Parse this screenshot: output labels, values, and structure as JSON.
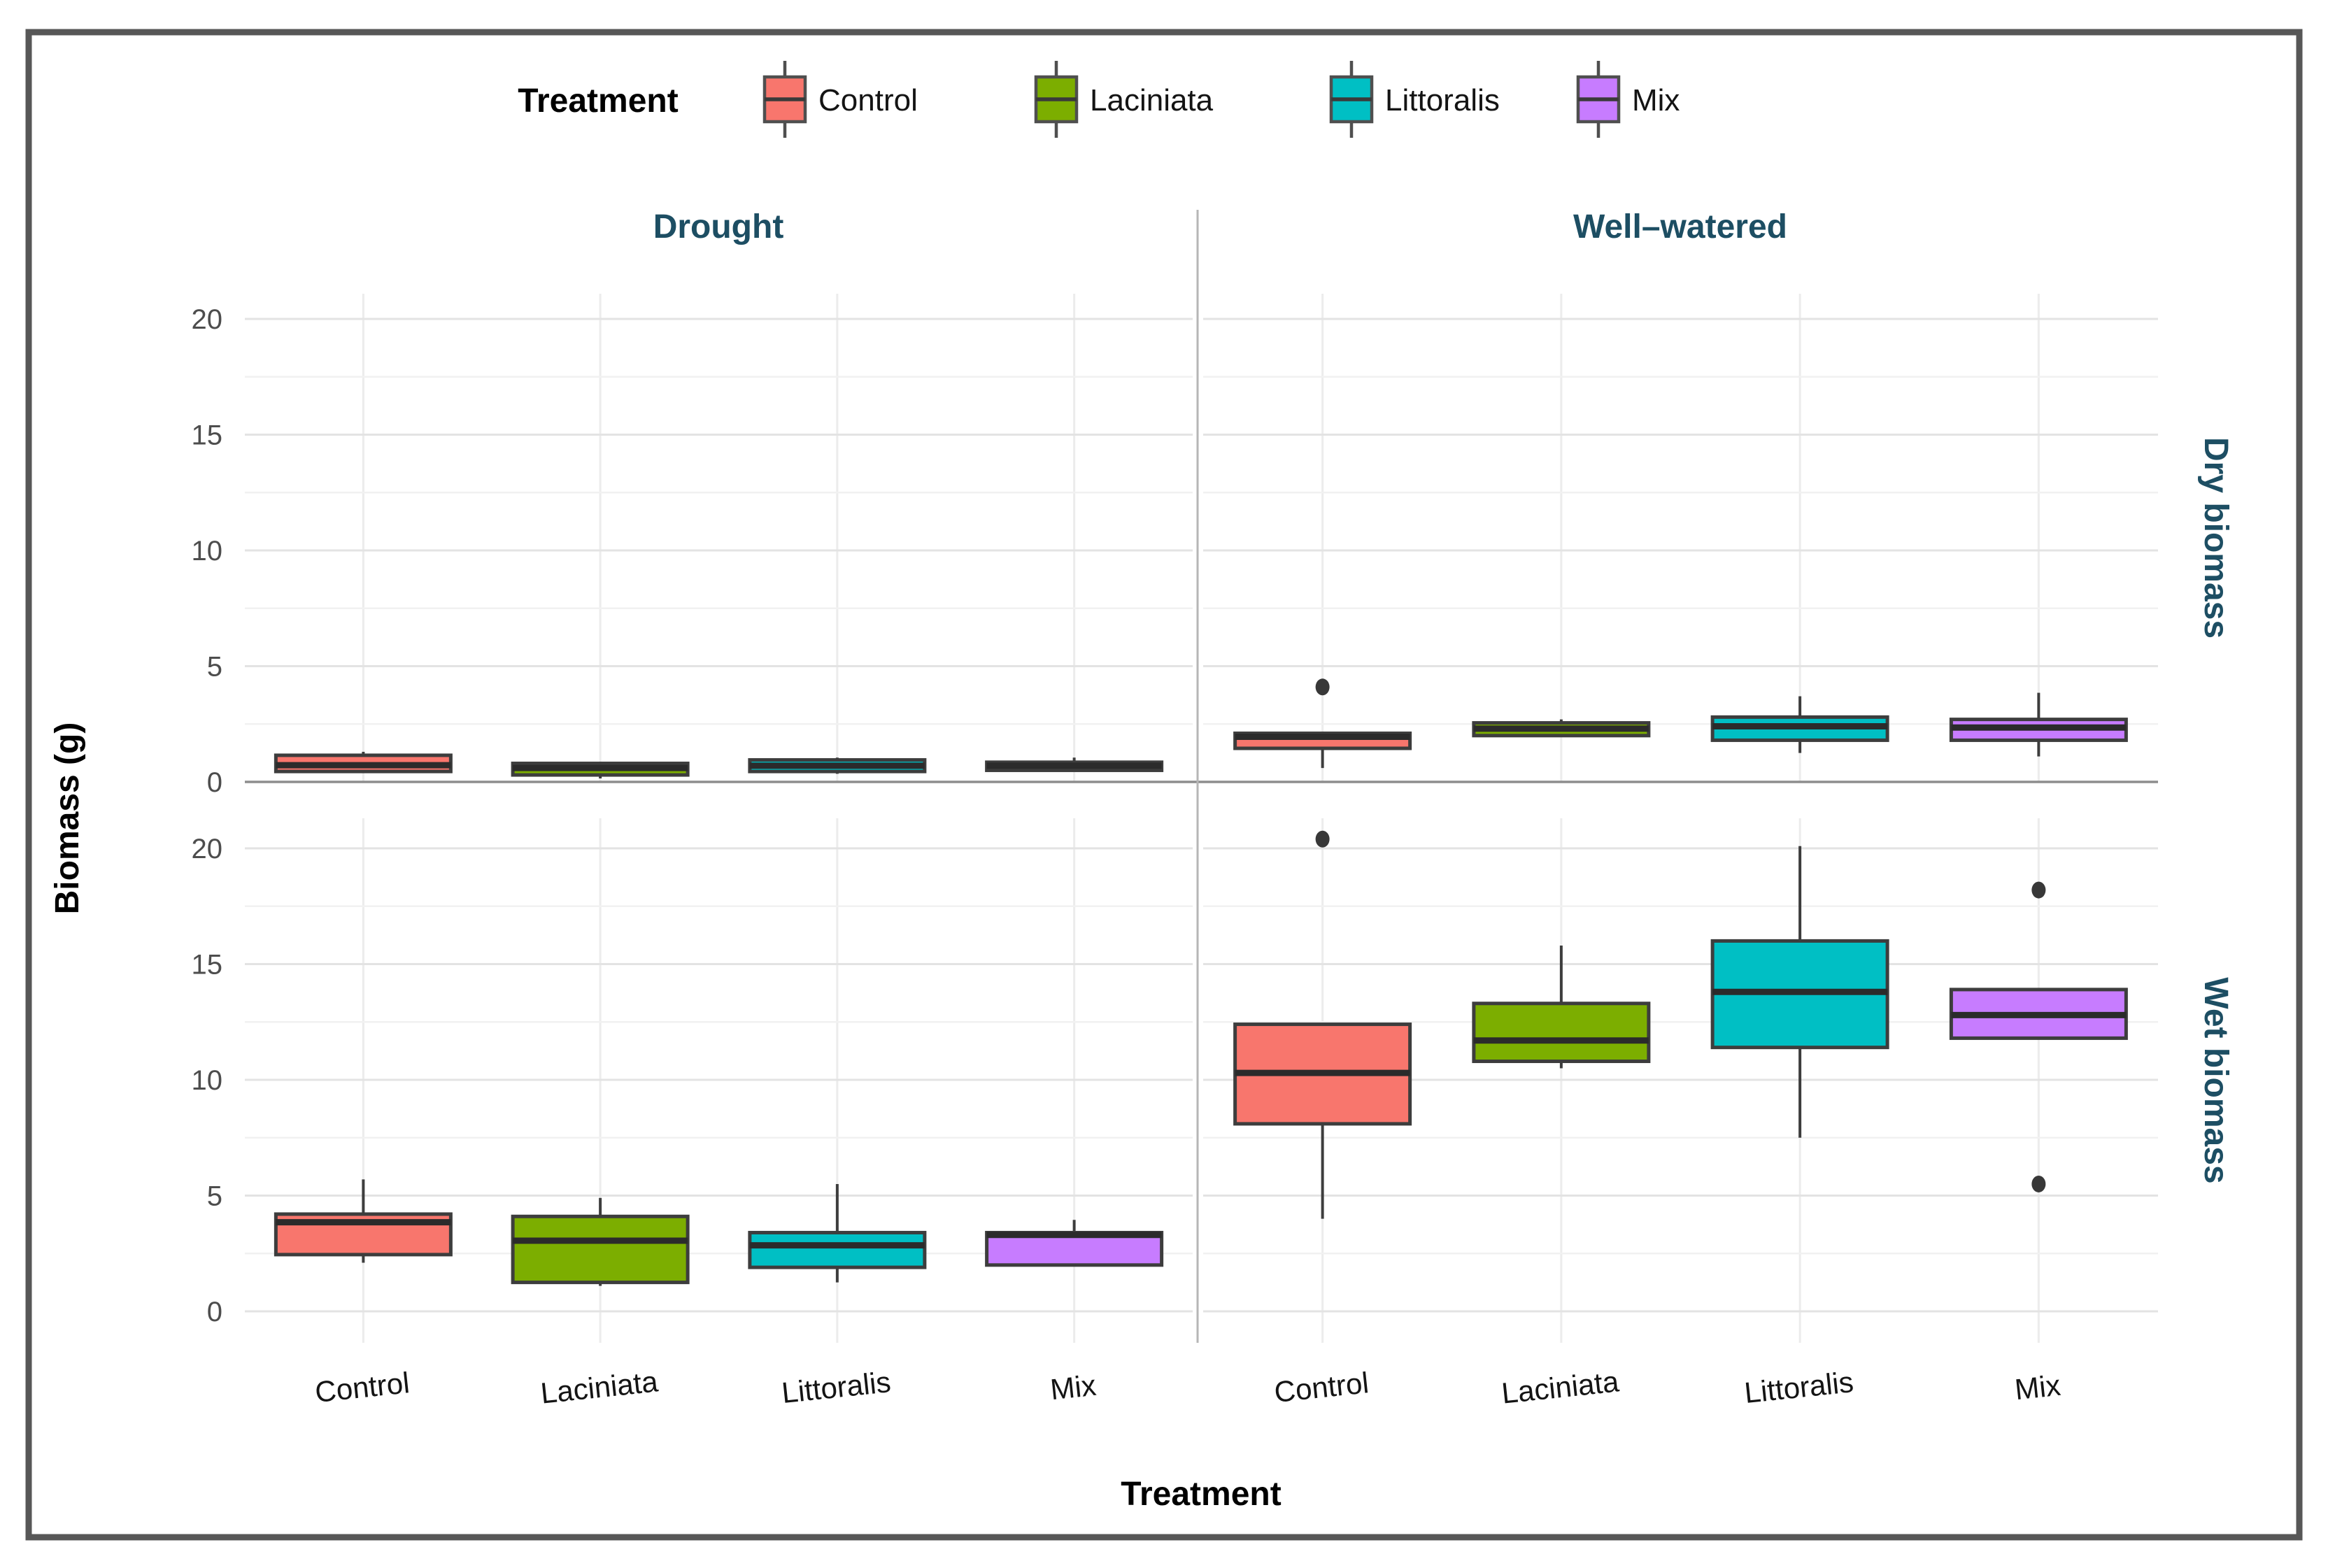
{
  "figure": {
    "legend": {
      "title": "Treatment",
      "position": "top",
      "items": [
        {
          "label": "Control",
          "color": "#F8766D"
        },
        {
          "label": "Laciniata",
          "color": "#7CAE00"
        },
        {
          "label": "Littoralis",
          "color": "#00BFC4"
        },
        {
          "label": "Mix",
          "color": "#C77CFF"
        }
      ]
    },
    "colors": {
      "strip_text": "#1d4e63",
      "tick_text": "#4d4d4d",
      "axis_text": "#141414",
      "grid_major": "#e3e3e3",
      "grid_minor": "#f1f1f1",
      "grid_vertical": "#ececec",
      "separator": "#8d8d8d",
      "divider": "#b6b6b6",
      "box_border": "#3d3d3d",
      "median": "#2b2b2b",
      "outlier": "#383838",
      "frame": "#575757",
      "background": "#ffffff"
    }
  },
  "chart_data": {
    "type": "boxplot",
    "title": "",
    "xlabel": "Treatment",
    "ylabel": "Biomass (g)",
    "y_ticks": [
      0,
      5,
      10,
      15,
      20
    ],
    "ylim": [
      0,
      21
    ],
    "grid": true,
    "legend_position": "top",
    "col_facets": [
      "Drought",
      "Well–watered"
    ],
    "row_facets": [
      "Dry biomass",
      "Wet biomass"
    ],
    "groups": [
      "Control",
      "Laciniata",
      "Littoralis",
      "Mix"
    ],
    "colors": {
      "Control": "#F8766D",
      "Laciniata": "#7CAE00",
      "Littoralis": "#00BFC4",
      "Mix": "#C77CFF"
    },
    "panels": [
      {
        "row": 0,
        "col": 0,
        "row_label": "Dry biomass",
        "col_label": "Drought",
        "boxes": [
          {
            "group": "Control",
            "whislo": 0.4,
            "q1": 0.45,
            "med": 0.72,
            "q3": 1.15,
            "whishi": 1.3,
            "outliers": []
          },
          {
            "group": "Laciniata",
            "whislo": 0.15,
            "q1": 0.3,
            "med": 0.6,
            "q3": 0.8,
            "whishi": 0.85,
            "outliers": []
          },
          {
            "group": "Littoralis",
            "whislo": 0.35,
            "q1": 0.45,
            "med": 0.7,
            "q3": 0.95,
            "whishi": 1.05,
            "outliers": []
          },
          {
            "group": "Mix",
            "whislo": 0.5,
            "q1": 0.5,
            "med": 0.7,
            "q3": 0.85,
            "whishi": 1.05,
            "outliers": []
          }
        ]
      },
      {
        "row": 0,
        "col": 1,
        "row_label": "Dry biomass",
        "col_label": "Well–watered",
        "boxes": [
          {
            "group": "Control",
            "whislo": 0.6,
            "q1": 1.45,
            "med": 1.95,
            "q3": 2.1,
            "whishi": 2.1,
            "outliers": [
              4.1
            ]
          },
          {
            "group": "Laciniata",
            "whislo": 1.95,
            "q1": 2.0,
            "med": 2.3,
            "q3": 2.55,
            "whishi": 2.7,
            "outliers": []
          },
          {
            "group": "Littoralis",
            "whislo": 1.25,
            "q1": 1.8,
            "med": 2.4,
            "q3": 2.8,
            "whishi": 3.7,
            "outliers": []
          },
          {
            "group": "Mix",
            "whislo": 1.1,
            "q1": 1.8,
            "med": 2.35,
            "q3": 2.7,
            "whishi": 3.85,
            "outliers": []
          }
        ]
      },
      {
        "row": 1,
        "col": 0,
        "row_label": "Wet biomass",
        "col_label": "Drought",
        "boxes": [
          {
            "group": "Control",
            "whislo": 2.1,
            "q1": 2.45,
            "med": 3.85,
            "q3": 4.2,
            "whishi": 5.7,
            "outliers": []
          },
          {
            "group": "Laciniata",
            "whislo": 1.1,
            "q1": 1.25,
            "med": 3.05,
            "q3": 4.1,
            "whishi": 4.9,
            "outliers": []
          },
          {
            "group": "Littoralis",
            "whislo": 1.25,
            "q1": 1.9,
            "med": 2.85,
            "q3": 3.4,
            "whishi": 5.5,
            "outliers": []
          },
          {
            "group": "Mix",
            "whislo": 2.0,
            "q1": 2.0,
            "med": 3.3,
            "q3": 3.4,
            "whishi": 3.95,
            "outliers": []
          }
        ]
      },
      {
        "row": 1,
        "col": 1,
        "row_label": "Wet biomass",
        "col_label": "Well–watered",
        "boxes": [
          {
            "group": "Control",
            "whislo": 4.0,
            "q1": 8.1,
            "med": 10.3,
            "q3": 12.4,
            "whishi": 12.4,
            "outliers": [
              20.4
            ]
          },
          {
            "group": "Laciniata",
            "whislo": 10.5,
            "q1": 10.8,
            "med": 11.7,
            "q3": 13.3,
            "whishi": 15.8,
            "outliers": []
          },
          {
            "group": "Littoralis",
            "whislo": 7.5,
            "q1": 11.4,
            "med": 13.8,
            "q3": 16.0,
            "whishi": 20.1,
            "outliers": []
          },
          {
            "group": "Mix",
            "whislo": 11.8,
            "q1": 11.8,
            "med": 12.8,
            "q3": 13.9,
            "whishi": 13.9,
            "outliers": [
              18.2,
              5.5
            ]
          }
        ]
      }
    ]
  }
}
